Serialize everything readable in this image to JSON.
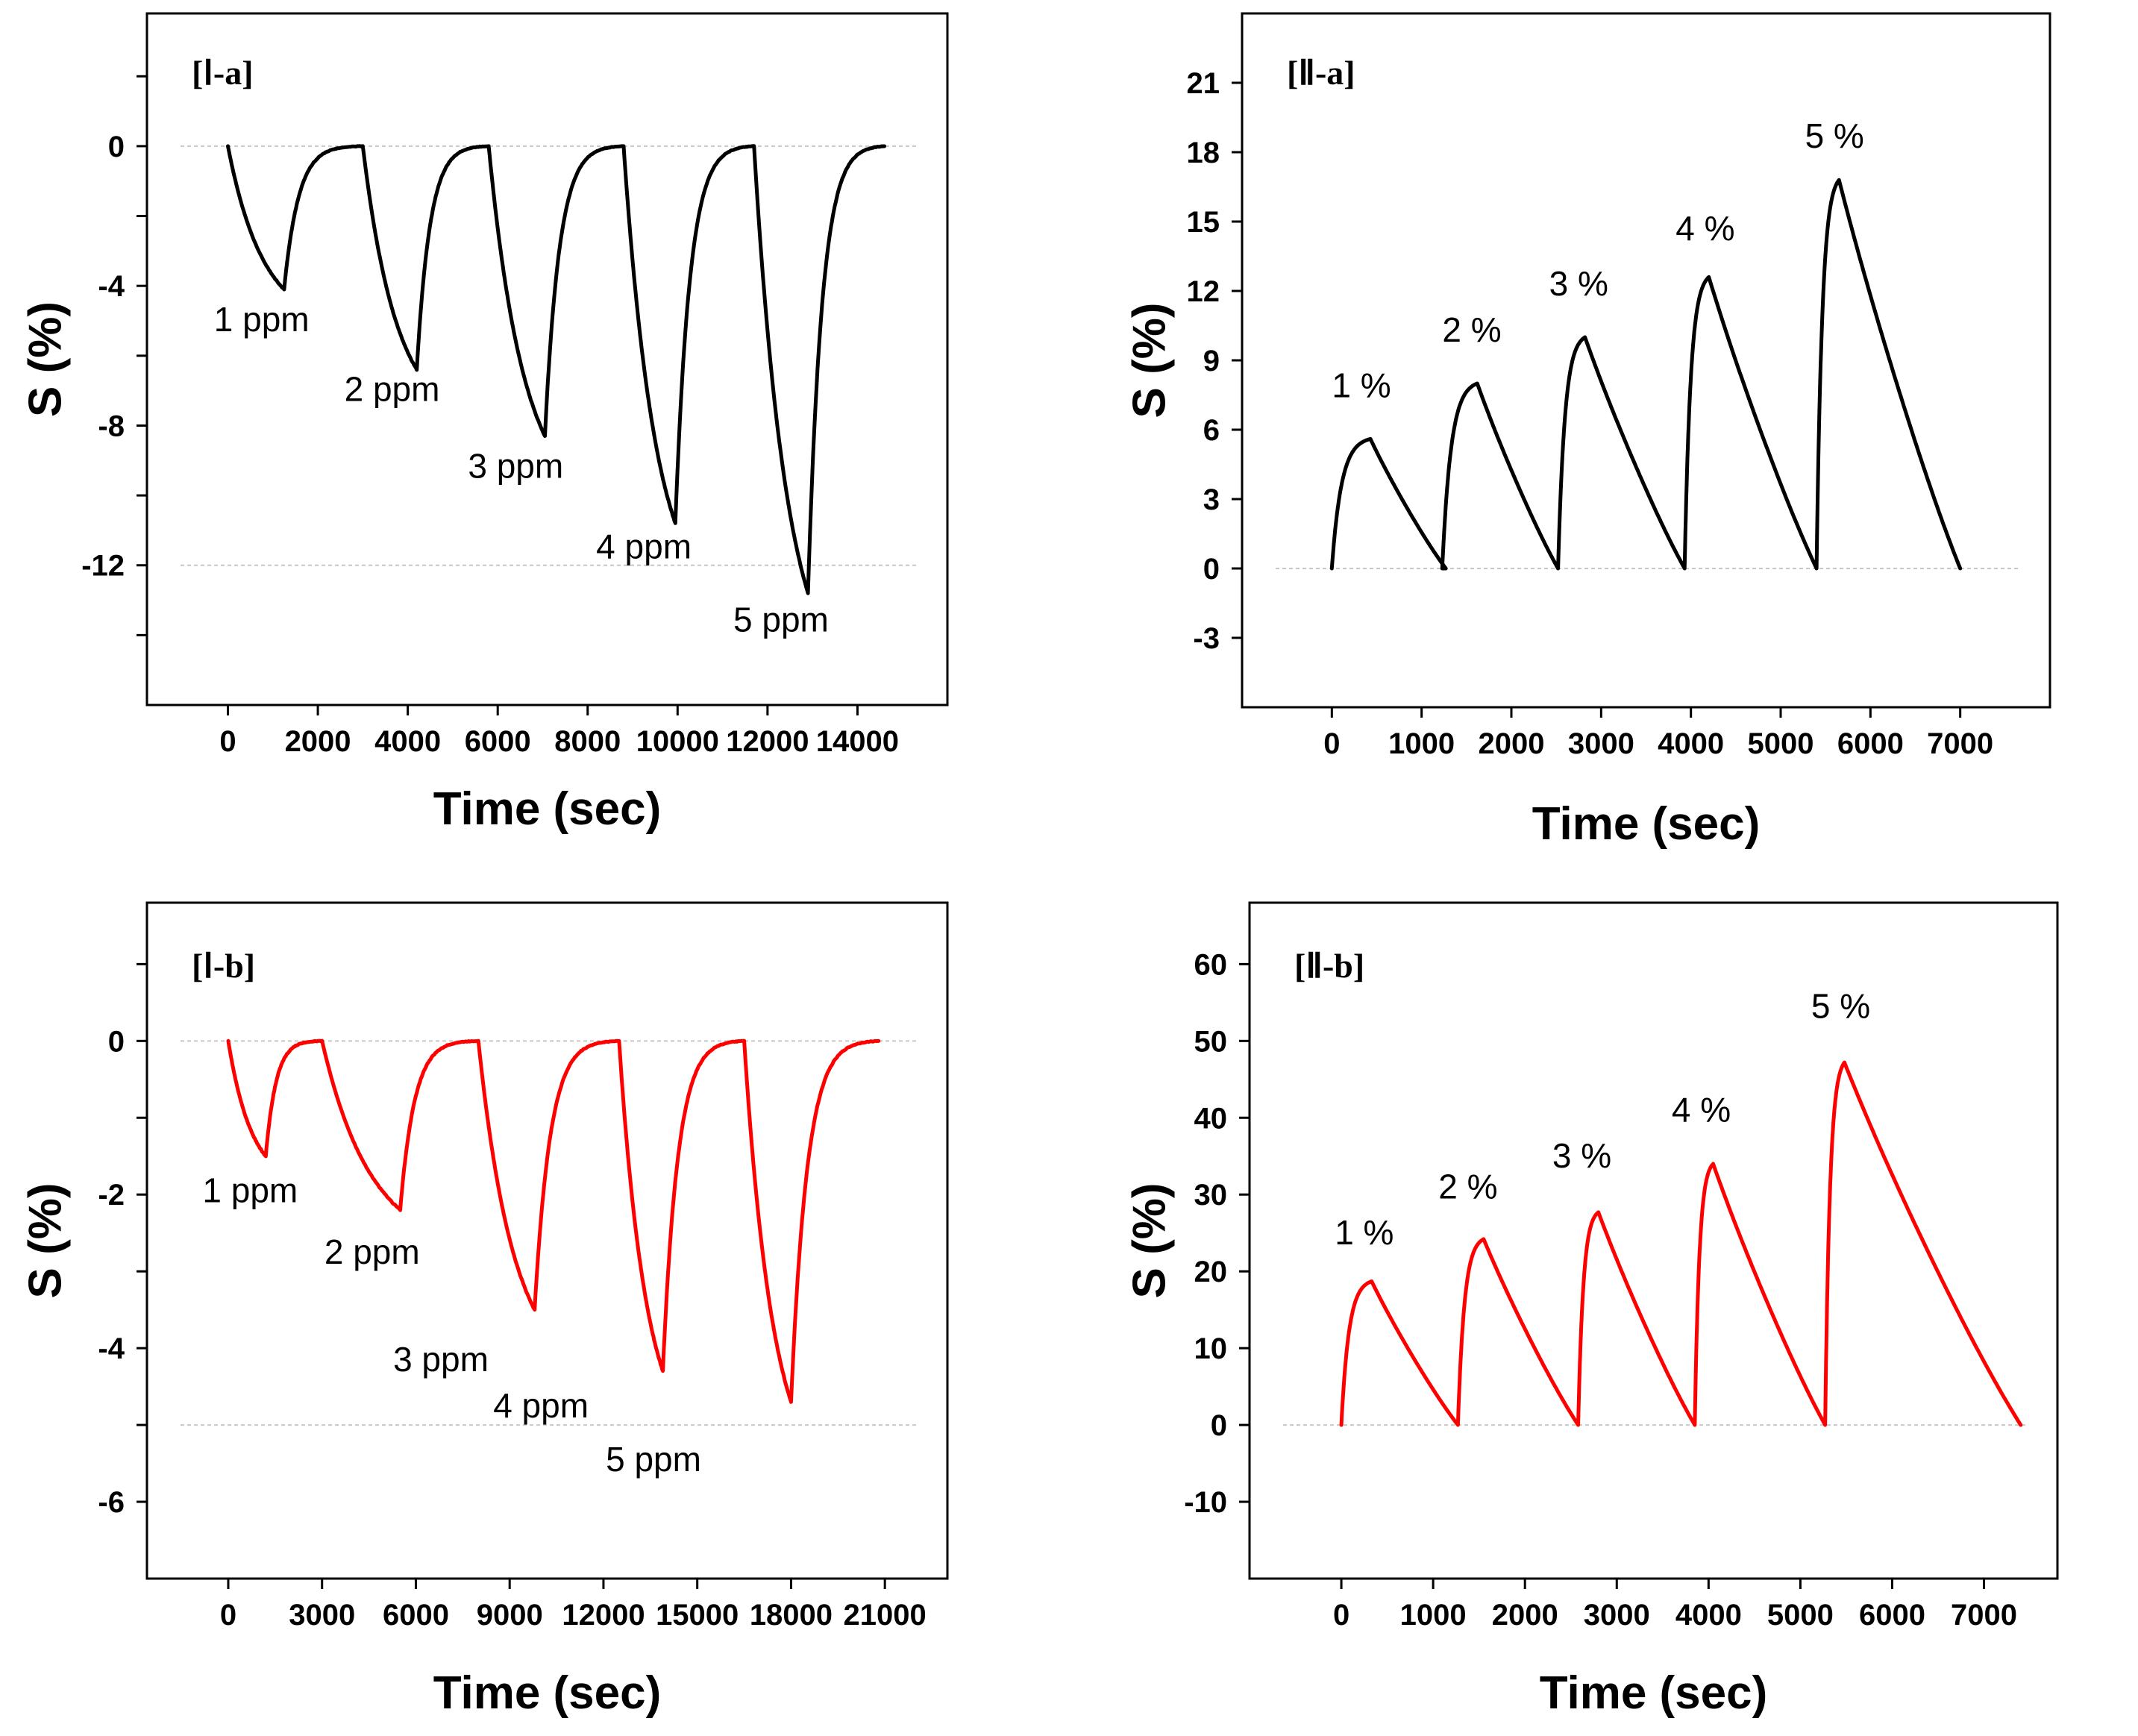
{
  "chart_data": [
    {
      "id": "Ia",
      "type": "line",
      "panel_label": "[Ⅰ-a]",
      "xlabel": "Time (sec)",
      "ylabel": "S (%)",
      "xlim": [
        -1800,
        16000
      ],
      "ylim": [
        -16,
        3.8
      ],
      "xticks": [
        0,
        2000,
        4000,
        6000,
        8000,
        10000,
        12000,
        14000
      ],
      "yticks": [
        0,
        -4,
        -8,
        -12
      ],
      "ytick_labels": [
        "0",
        "-4",
        "-8",
        "-12"
      ],
      "yminor": [
        2,
        -2,
        -6,
        -10,
        -14
      ],
      "reference_lines": [
        0,
        -12
      ],
      "line_color": "#000000",
      "noise": 0.05,
      "kind": "down",
      "curve_k": 0.3,
      "cycles": [
        {
          "start": 0,
          "peak_t": 1250,
          "end": 3000,
          "value": -4.1
        },
        {
          "start": 3000,
          "peak_t": 4200,
          "end": 5800,
          "value": -6.4
        },
        {
          "start": 5800,
          "peak_t": 7050,
          "end": 8800,
          "value": -8.3
        },
        {
          "start": 8800,
          "peak_t": 9950,
          "end": 11700,
          "value": -10.8
        },
        {
          "start": 11700,
          "peak_t": 12900,
          "end": 14600,
          "value": -12.8
        }
      ],
      "annotations": [
        {
          "text": "1 ppm",
          "x": 750,
          "y": -5.3
        },
        {
          "text": "2 ppm",
          "x": 3650,
          "y": -7.3
        },
        {
          "text": "3 ppm",
          "x": 6400,
          "y": -9.5
        },
        {
          "text": "4 ppm",
          "x": 9250,
          "y": -11.8
        },
        {
          "text": "5 ppm",
          "x": 12300,
          "y": -13.9
        }
      ]
    },
    {
      "id": "IIa",
      "type": "line",
      "panel_label": "[Ⅱ-a]",
      "xlabel": "Time (sec)",
      "ylabel": "S (%)",
      "xlim": [
        -1000,
        8000
      ],
      "ylim": [
        -6,
        24
      ],
      "xticks": [
        0,
        1000,
        2000,
        3000,
        4000,
        5000,
        6000,
        7000
      ],
      "yticks": [
        -3,
        0,
        3,
        6,
        9,
        12,
        15,
        18,
        21
      ],
      "ytick_labels": [
        "-3",
        "0",
        "3",
        "6",
        "9",
        "12",
        "15",
        "18",
        "21"
      ],
      "yminor": [],
      "reference_lines": [
        0
      ],
      "line_color": "#000000",
      "noise": 0,
      "kind": "up",
      "curve_k": 0.35,
      "cycles": [
        {
          "start": 0,
          "peak_t": 430,
          "end": 1270,
          "value": 5.6
        },
        {
          "start": 1230,
          "peak_t": 1620,
          "end": 2520,
          "value": 8.0
        },
        {
          "start": 2520,
          "peak_t": 2820,
          "end": 3930,
          "value": 10.0
        },
        {
          "start": 3930,
          "peak_t": 4200,
          "end": 5400,
          "value": 12.6
        },
        {
          "start": 5400,
          "peak_t": 5650,
          "end": 7000,
          "value": 16.8
        }
      ],
      "annotations": [
        {
          "text": "1 %",
          "x": 330,
          "y": 7.4
        },
        {
          "text": "2 %",
          "x": 1560,
          "y": 9.8
        },
        {
          "text": "3 %",
          "x": 2750,
          "y": 11.8
        },
        {
          "text": "4 %",
          "x": 4160,
          "y": 14.2
        },
        {
          "text": "5 %",
          "x": 5600,
          "y": 18.2
        }
      ]
    },
    {
      "id": "Ib",
      "type": "line",
      "panel_label": "[Ⅰ-b]",
      "xlabel": "Time (sec)",
      "ylabel": "S (%)",
      "xlim": [
        -2600,
        23000
      ],
      "ylim": [
        -7,
        1.8
      ],
      "xticks": [
        0,
        3000,
        6000,
        9000,
        12000,
        15000,
        18000,
        21000
      ],
      "yticks": [
        0,
        -2,
        -4,
        -6
      ],
      "ytick_labels": [
        "0",
        "-2",
        "-4",
        "-6"
      ],
      "yminor": [
        1,
        -1,
        -3,
        -5
      ],
      "reference_lines": [
        0,
        -5
      ],
      "line_color": "#ff0000",
      "noise": 0.07,
      "kind": "down",
      "curve_k": 0.3,
      "cycles": [
        {
          "start": 0,
          "peak_t": 1200,
          "end": 3000,
          "value": -1.5
        },
        {
          "start": 3000,
          "peak_t": 5500,
          "end": 8000,
          "value": -2.2
        },
        {
          "start": 8000,
          "peak_t": 9800,
          "end": 12500,
          "value": -3.5
        },
        {
          "start": 12500,
          "peak_t": 13900,
          "end": 16500,
          "value": -4.3
        },
        {
          "start": 16500,
          "peak_t": 18000,
          "end": 20800,
          "value": -4.7
        }
      ],
      "annotations": [
        {
          "text": "1 ppm",
          "x": 700,
          "y": -2.1
        },
        {
          "text": "2 ppm",
          "x": 4600,
          "y": -2.9
        },
        {
          "text": "3 ppm",
          "x": 6800,
          "y": -4.3
        },
        {
          "text": "4 ppm",
          "x": 10000,
          "y": -4.9
        },
        {
          "text": "5 ppm",
          "x": 13600,
          "y": -5.6
        }
      ]
    },
    {
      "id": "IIb",
      "type": "line",
      "panel_label": "[Ⅱ-b]",
      "xlabel": "Time (sec)",
      "ylabel": "S (%)",
      "xlim": [
        -1000,
        7800
      ],
      "ylim": [
        -20,
        68
      ],
      "xticks": [
        0,
        1000,
        2000,
        3000,
        4000,
        5000,
        6000,
        7000
      ],
      "yticks": [
        -10,
        0,
        10,
        20,
        30,
        40,
        50,
        60
      ],
      "ytick_labels": [
        "-10",
        "0",
        "10",
        "20",
        "30",
        "40",
        "50",
        "60"
      ],
      "yminor": [],
      "reference_lines": [
        0
      ],
      "line_color": "#ff0000",
      "noise": 0,
      "kind": "up",
      "curve_k": 0.35,
      "cycles": [
        {
          "start": 0,
          "peak_t": 330,
          "end": 1270,
          "value": 18.7
        },
        {
          "start": 1270,
          "peak_t": 1550,
          "end": 2580,
          "value": 24.2
        },
        {
          "start": 2580,
          "peak_t": 2800,
          "end": 3850,
          "value": 27.7
        },
        {
          "start": 3850,
          "peak_t": 4050,
          "end": 5270,
          "value": 34.0
        },
        {
          "start": 5270,
          "peak_t": 5480,
          "end": 7400,
          "value": 47.2
        }
      ],
      "annotations": [
        {
          "text": "1 %",
          "x": 250,
          "y": 23.5
        },
        {
          "text": "2 %",
          "x": 1380,
          "y": 29.5
        },
        {
          "text": "3 %",
          "x": 2620,
          "y": 33.5
        },
        {
          "text": "4 %",
          "x": 3920,
          "y": 39.5
        },
        {
          "text": "5 %",
          "x": 5440,
          "y": 53
        }
      ]
    }
  ]
}
